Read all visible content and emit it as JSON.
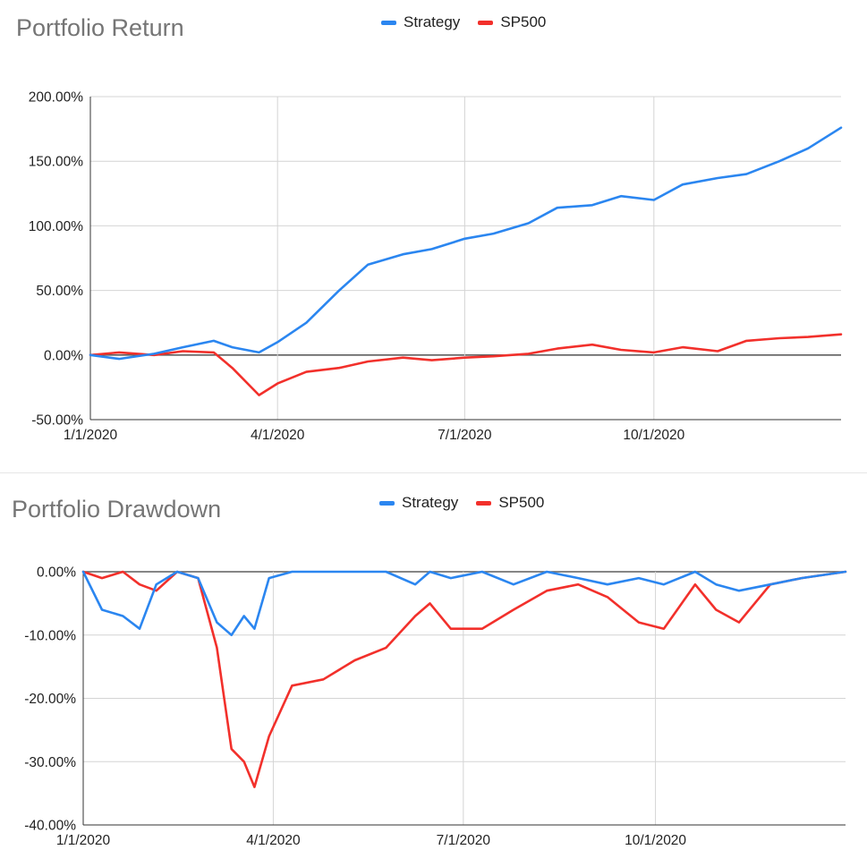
{
  "charts": [
    {
      "title": "Portfolio Return",
      "legend": [
        {
          "name": "Strategy",
          "color": "#2b86f0"
        },
        {
          "name": "SP500",
          "color": "#f2302b"
        }
      ]
    },
    {
      "title": "Portfolio Drawdown",
      "legend": [
        {
          "name": "Strategy",
          "color": "#2b86f0"
        },
        {
          "name": "SP500",
          "color": "#f2302b"
        }
      ]
    }
  ],
  "chart_data": [
    {
      "type": "line",
      "title": "Portfolio Return",
      "xlabel": "",
      "ylabel": "",
      "x_ticks": [
        "1/1/2020",
        "4/1/2020",
        "7/1/2020",
        "10/1/2020"
      ],
      "y_ticks": [
        "200.00%",
        "150.00%",
        "100.00%",
        "50.00%",
        "0.00%",
        "-50.00%"
      ],
      "ylim": [
        -50,
        200
      ],
      "xlim": [
        "2020-01-01",
        "2020-12-31"
      ],
      "grid": true,
      "legend_position": "top",
      "x": [
        "2020-01-01",
        "2020-01-15",
        "2020-02-01",
        "2020-02-15",
        "2020-03-01",
        "2020-03-10",
        "2020-03-23",
        "2020-04-01",
        "2020-04-15",
        "2020-05-01",
        "2020-05-15",
        "2020-06-01",
        "2020-06-15",
        "2020-07-01",
        "2020-07-15",
        "2020-08-01",
        "2020-08-15",
        "2020-09-01",
        "2020-09-15",
        "2020-10-01",
        "2020-10-15",
        "2020-11-01",
        "2020-11-15",
        "2020-12-01",
        "2020-12-15",
        "2020-12-31"
      ],
      "series": [
        {
          "name": "Strategy",
          "color": "#2b86f0",
          "values": [
            0,
            -3,
            1,
            6,
            11,
            6,
            2,
            10,
            25,
            50,
            70,
            78,
            82,
            90,
            94,
            102,
            114,
            116,
            123,
            120,
            132,
            137,
            140,
            150,
            160,
            176
          ]
        },
        {
          "name": "SP500",
          "color": "#f2302b",
          "values": [
            0,
            2,
            0,
            3,
            2,
            -10,
            -31,
            -22,
            -13,
            -10,
            -5,
            -2,
            -4,
            -2,
            -1,
            1,
            5,
            8,
            4,
            2,
            6,
            3,
            11,
            13,
            14,
            16
          ]
        }
      ]
    },
    {
      "type": "line",
      "title": "Portfolio Drawdown",
      "xlabel": "",
      "ylabel": "",
      "x_ticks": [
        "1/1/2020",
        "4/1/2020",
        "7/1/2020",
        "10/1/2020"
      ],
      "y_ticks": [
        "0.00%",
        "-10.00%",
        "-20.00%",
        "-30.00%",
        "-40.00%"
      ],
      "ylim": [
        -40,
        0
      ],
      "xlim": [
        "2020-01-01",
        "2020-12-31"
      ],
      "grid": true,
      "legend_position": "top",
      "x": [
        "2020-01-01",
        "2020-01-10",
        "2020-01-20",
        "2020-01-28",
        "2020-02-05",
        "2020-02-15",
        "2020-02-25",
        "2020-03-05",
        "2020-03-12",
        "2020-03-18",
        "2020-03-23",
        "2020-03-30",
        "2020-04-10",
        "2020-04-25",
        "2020-05-10",
        "2020-05-25",
        "2020-06-08",
        "2020-06-15",
        "2020-06-25",
        "2020-07-10",
        "2020-07-25",
        "2020-08-10",
        "2020-08-25",
        "2020-09-08",
        "2020-09-23",
        "2020-10-05",
        "2020-10-20",
        "2020-10-30",
        "2020-11-10",
        "2020-11-25",
        "2020-12-10",
        "2020-12-31"
      ],
      "series": [
        {
          "name": "Strategy",
          "color": "#2b86f0",
          "values": [
            0,
            -6,
            -7,
            -9,
            -2,
            0,
            -1,
            -8,
            -10,
            -7,
            -9,
            -1,
            0,
            0,
            0,
            0,
            -2,
            0,
            -1,
            0,
            -2,
            0,
            -1,
            -2,
            -1,
            -2,
            0,
            -2,
            -3,
            -2,
            -1,
            0
          ]
        },
        {
          "name": "SP500",
          "color": "#f2302b",
          "values": [
            0,
            -1,
            0,
            -2,
            -3,
            0,
            -1,
            -12,
            -28,
            -30,
            -34,
            -26,
            -18,
            -17,
            -14,
            -12,
            -7,
            -5,
            -9,
            -9,
            -6,
            -3,
            -2,
            -4,
            -8,
            -9,
            -2,
            -6,
            -8,
            -2,
            -1,
            0
          ]
        }
      ]
    }
  ]
}
